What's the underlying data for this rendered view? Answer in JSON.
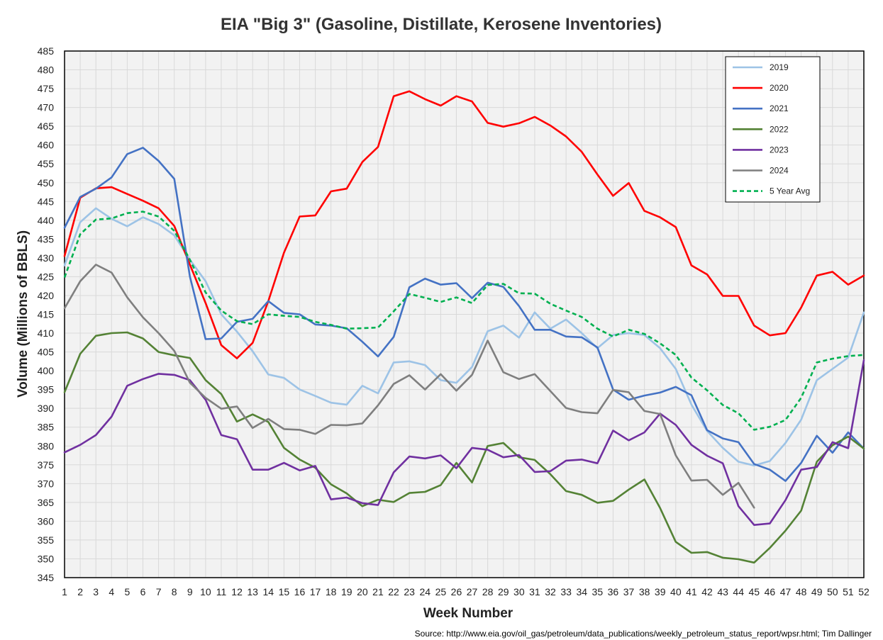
{
  "chart_data": {
    "type": "line",
    "title": "EIA \"Big 3\" (Gasoline, Distillate, Kerosene Inventories)",
    "xlabel": "Week Number",
    "ylabel": "Volume (Millions of BBLS)",
    "source": "Source: http://www.eia.gov/oil_gas/petroleum/data_publications/weekly_petroleum_status_report/wpsr.html; Tim Dallinger",
    "x": [
      1,
      2,
      3,
      4,
      5,
      6,
      7,
      8,
      9,
      10,
      11,
      12,
      13,
      14,
      15,
      16,
      17,
      18,
      19,
      20,
      21,
      22,
      23,
      24,
      25,
      26,
      27,
      28,
      29,
      30,
      31,
      32,
      33,
      34,
      35,
      36,
      37,
      38,
      39,
      40,
      41,
      42,
      43,
      44,
      45,
      46,
      47,
      48,
      49,
      50,
      51,
      52
    ],
    "xlim": [
      1,
      52
    ],
    "ylim": [
      345,
      485
    ],
    "ytick_step": 5,
    "grid": true,
    "legend_position": "top-right",
    "series": [
      {
        "name": "2019",
        "color": "#9DC3E6",
        "dash": false,
        "values": [
          428,
          439.5,
          443.2,
          440.4,
          438.4,
          440.8,
          439,
          436,
          429.5,
          423.8,
          415,
          410.4,
          405.2,
          399,
          398.1,
          395,
          393.3,
          391.5,
          391,
          396,
          394,
          402.2,
          402.5,
          401.5,
          397.5,
          396.8,
          401,
          410.5,
          412,
          408.8,
          415.5,
          411.2,
          413.6,
          410,
          406,
          409.5,
          410,
          409.5,
          406,
          400.5,
          391,
          384,
          379.5,
          375.8,
          374.8,
          376,
          380.8,
          387,
          397.5,
          400.5,
          403.5,
          415.5
        ]
      },
      {
        "name": "2020",
        "color": "#FF0000",
        "dash": false,
        "values": [
          430.5,
          446,
          448.5,
          448.8,
          447,
          445.2,
          443.2,
          438.5,
          428.2,
          418,
          406.8,
          403.3,
          407.4,
          418.5,
          431.4,
          441,
          441.3,
          447.7,
          448.4,
          455.5,
          459.5,
          473,
          474.3,
          472.2,
          470.5,
          473,
          471.6,
          465.9,
          464.9,
          465.8,
          467.5,
          465.2,
          462.3,
          458.2,
          452.2,
          446.5,
          449.9,
          442.5,
          440.8,
          438.2,
          428,
          425.6,
          419.9,
          419.9,
          412,
          409.4,
          410,
          416.8,
          425.3,
          426.3,
          422.9,
          425.3
        ]
      },
      {
        "name": "2021",
        "color": "#4472C4",
        "dash": false,
        "values": [
          438,
          446.2,
          448.4,
          451.4,
          457.6,
          459.3,
          455.8,
          451,
          425,
          408.4,
          408.6,
          413,
          413.8,
          418.5,
          415.4,
          415,
          412.3,
          412,
          411.3,
          407.7,
          403.8,
          409,
          422.2,
          424.5,
          422.9,
          423.3,
          419.3,
          423.4,
          422.3,
          417.2,
          410.9,
          410.9,
          409.1,
          408.9,
          406.2,
          395,
          392.3,
          393.4,
          394.2,
          395.7,
          393.5,
          384.2,
          382,
          381,
          375.2,
          373.7,
          370.7,
          375.5,
          382.7,
          378.2,
          383.6,
          379.3
        ]
      },
      {
        "name": "2022",
        "color": "#548235",
        "dash": false,
        "values": [
          394.3,
          404.5,
          409.3,
          410,
          410.2,
          408.6,
          405,
          404.1,
          403.4,
          397.5,
          393.8,
          386.5,
          388.4,
          386.4,
          379.5,
          376.4,
          374.2,
          369.8,
          367.4,
          364,
          365.7,
          365.1,
          367.5,
          367.8,
          369.6,
          375.5,
          370.3,
          380,
          380.8,
          377,
          376.3,
          372.5,
          368,
          367,
          364.9,
          365.4,
          368.4,
          371.1,
          363.5,
          354.5,
          351.6,
          351.8,
          350.3,
          349.9,
          349,
          352.9,
          357.5,
          362.8,
          375.8,
          380.2,
          382.5,
          379.3
        ]
      },
      {
        "name": "2023",
        "color": "#7030A0",
        "dash": false,
        "values": [
          378.3,
          380.3,
          382.9,
          387.8,
          396,
          397.8,
          399.2,
          398.9,
          397.5,
          392.3,
          382.9,
          381.8,
          373.7,
          373.7,
          375.5,
          373.5,
          374.7,
          365.8,
          366.3,
          364.8,
          364.3,
          373,
          377.2,
          376.7,
          377.5,
          374.1,
          379.5,
          379,
          377,
          377.6,
          373.1,
          373.3,
          376.1,
          376.4,
          375.4,
          384.1,
          381.5,
          383.6,
          388.6,
          385.6,
          380.3,
          377.4,
          375.4,
          364,
          359,
          359.4,
          365.6,
          373.7,
          374.4,
          381,
          379.4,
          402.8
        ]
      },
      {
        "name": "2024",
        "color": "#7F7F7F",
        "dash": false,
        "values": [
          416.6,
          423.8,
          428.2,
          426.1,
          419.5,
          414.2,
          410,
          405.3,
          396.8,
          392.8,
          389.9,
          390.5,
          384.8,
          387.2,
          384.5,
          384.3,
          383.2,
          385.6,
          385.5,
          386,
          390.8,
          396.5,
          398.8,
          395,
          399.1,
          394.7,
          398.9,
          408,
          399.6,
          397.8,
          399.1,
          394.6,
          390.1,
          389,
          388.7,
          394.9,
          394.3,
          389.3,
          388.5,
          377.5,
          370.8,
          371,
          367,
          370.2,
          363.6,
          null,
          null,
          null,
          null,
          null,
          null,
          null
        ]
      },
      {
        "name": "5 Year Avg",
        "color": "#00B050",
        "dash": true,
        "values": [
          424.8,
          436.3,
          440.2,
          440.5,
          441.9,
          442.3,
          441,
          437.2,
          429.5,
          420.8,
          416,
          413.2,
          412.4,
          415,
          414.6,
          414.3,
          413,
          412.2,
          411.2,
          411.3,
          411.5,
          415.8,
          420.4,
          419.4,
          418.3,
          419.5,
          418,
          422.8,
          423.1,
          420.6,
          420.5,
          417.8,
          416,
          414.3,
          411.2,
          409.1,
          410.9,
          409.8,
          407.3,
          404.2,
          398.2,
          394.8,
          390.9,
          388.7,
          384.3,
          385.1,
          386.9,
          392.8,
          402.2,
          403.2,
          403.9,
          404.2
        ]
      }
    ]
  }
}
